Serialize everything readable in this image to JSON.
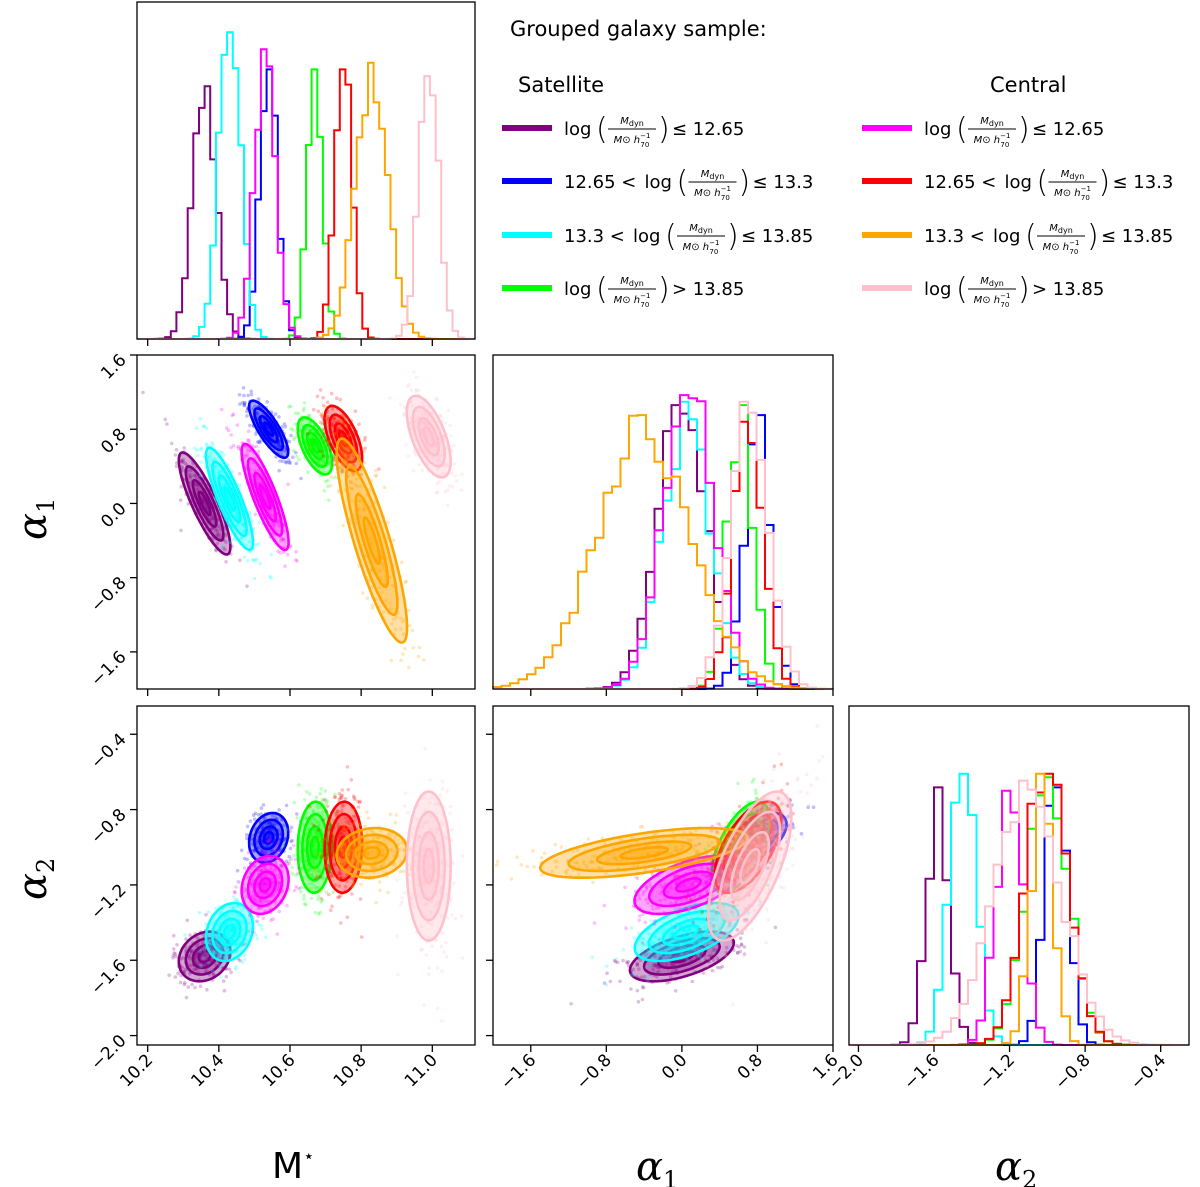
{
  "chart_data": {
    "type": "corner-plot",
    "parameters": [
      "M*",
      "α1",
      "α2"
    ],
    "axis_labels": {
      "mstar": "M",
      "mstar_sup": "⋆",
      "alpha1": "α",
      "alpha1_sub": "1",
      "alpha2": "α",
      "alpha2_sub": "2"
    },
    "ranges": {
      "mstar": [
        10.17,
        11.12
      ],
      "alpha1": [
        -2.0,
        1.6
      ],
      "alpha2": [
        -2.05,
        -0.25
      ]
    },
    "ticks": {
      "mstar": [
        10.2,
        10.4,
        10.6,
        10.8,
        11.0
      ],
      "mstar_labels": [
        "10.2",
        "10.4",
        "10.6",
        "10.8",
        "11.0"
      ],
      "alpha1": [
        -1.6,
        -0.8,
        0.0,
        0.8,
        1.6
      ],
      "alpha1_labels": [
        "−1.6",
        "−0.8",
        "0.0",
        "0.8",
        "1.6"
      ],
      "alpha2": [
        -2.0,
        -1.6,
        -1.2,
        -0.8,
        -0.4
      ],
      "alpha2_labels": [
        "−2.0",
        "−1.6",
        "−1.2",
        "−0.8",
        "−0.4"
      ]
    },
    "legend": {
      "title": "Grouped galaxy sample:",
      "column_headings": [
        "Satellite",
        "Central"
      ],
      "fraction_top": "M",
      "fraction_top_sub": "dyn",
      "fraction_bottom": "M⊙ h",
      "fraction_bottom_sup": "−1",
      "fraction_bottom_sub": "70",
      "entries": [
        {
          "group": "Satellite",
          "prefix": "",
          "suffix": "≤ 12.65",
          "color": "#800080"
        },
        {
          "group": "Satellite",
          "prefix": "12.65 <",
          "suffix": "≤ 13.3",
          "color": "#0000ff"
        },
        {
          "group": "Satellite",
          "prefix": "13.3 <",
          "suffix": "≤ 13.85",
          "color": "#00ffff"
        },
        {
          "group": "Satellite",
          "prefix": "",
          "suffix": "> 13.85",
          "color": "#00ff00"
        },
        {
          "group": "Central",
          "prefix": "",
          "suffix": "≤ 12.65",
          "color": "#ff00ff"
        },
        {
          "group": "Central",
          "prefix": "12.65 <",
          "suffix": "≤ 13.3",
          "color": "#ff0000"
        },
        {
          "group": "Central",
          "prefix": "13.3 <",
          "suffix": "≤ 13.85",
          "color": "#ffa500"
        },
        {
          "group": "Central",
          "prefix": "",
          "suffix": "> 13.85",
          "color": "#ffc0cb"
        }
      ],
      "log_word": "log"
    },
    "series": [
      {
        "name": "Satellite log(Mdyn) ≤ 12.65",
        "color": "#800080",
        "mstar": 10.36,
        "mstar_sd": 0.033,
        "alpha1": 0.0,
        "alpha1_sd": 0.25,
        "alpha2": -1.58,
        "alpha2_sd": 0.06,
        "corr_m_a1": -0.85,
        "corr_m_a2": 0.2,
        "corr_a1_a2": 0.55
      },
      {
        "name": "Satellite 12.65 < log(Mdyn) ≤ 13.3",
        "color": "#0000ff",
        "mstar": 10.54,
        "mstar_sd": 0.025,
        "alpha1": 0.8,
        "alpha1_sd": 0.14,
        "alpha2": -0.95,
        "alpha2_sd": 0.06,
        "corr_m_a1": -0.8,
        "corr_m_a2": 0.2,
        "corr_a1_a2": 0.55
      },
      {
        "name": "Satellite 13.3 < log(Mdyn) ≤ 13.85",
        "color": "#00ffff",
        "mstar": 10.43,
        "mstar_sd": 0.03,
        "alpha1": 0.05,
        "alpha1_sd": 0.25,
        "alpha2": -1.45,
        "alpha2_sd": 0.07,
        "corr_m_a1": -0.85,
        "corr_m_a2": 0.2,
        "corr_a1_a2": 0.55
      },
      {
        "name": "Satellite log(Mdyn) > 13.85",
        "color": "#00ff00",
        "mstar": 10.67,
        "mstar_sd": 0.022,
        "alpha1": 0.62,
        "alpha1_sd": 0.14,
        "alpha2": -1.0,
        "alpha2_sd": 0.11,
        "corr_m_a1": -0.6,
        "corr_m_a2": 0.05,
        "corr_a1_a2": 0.6
      },
      {
        "name": "Central log(Mdyn) ≤ 12.65",
        "color": "#ff00ff",
        "mstar": 10.53,
        "mstar_sd": 0.03,
        "alpha1": 0.07,
        "alpha1_sd": 0.26,
        "alpha2": -1.2,
        "alpha2_sd": 0.07,
        "corr_m_a1": -0.85,
        "corr_m_a2": 0.2,
        "corr_a1_a2": 0.55
      },
      {
        "name": "Central 12.65 < log(Mdyn) ≤ 13.3",
        "color": "#ff0000",
        "mstar": 10.75,
        "mstar_sd": 0.024,
        "alpha1": 0.7,
        "alpha1_sd": 0.16,
        "alpha2": -1.0,
        "alpha2_sd": 0.11,
        "corr_m_a1": -0.6,
        "corr_m_a2": 0.05,
        "corr_a1_a2": 0.6
      },
      {
        "name": "Central 13.3 < log(Mdyn) ≤ 13.85",
        "color": "#ffa500",
        "mstar": 10.83,
        "mstar_sd": 0.045,
        "alpha1": -0.4,
        "alpha1_sd": 0.5,
        "alpha2": -1.03,
        "alpha2_sd": 0.06,
        "corr_m_a1": -0.85,
        "corr_m_a2": 0.1,
        "corr_a1_a2": 0.6
      },
      {
        "name": "Central log(Mdyn) > 13.85",
        "color": "#ffc0cb",
        "mstar": 10.99,
        "mstar_sd": 0.028,
        "alpha1": 0.72,
        "alpha1_sd": 0.2,
        "alpha2": -1.1,
        "alpha2_sd": 0.18,
        "corr_m_a1": -0.6,
        "corr_m_a2": 0.0,
        "corr_a1_a2": 0.65
      }
    ]
  }
}
